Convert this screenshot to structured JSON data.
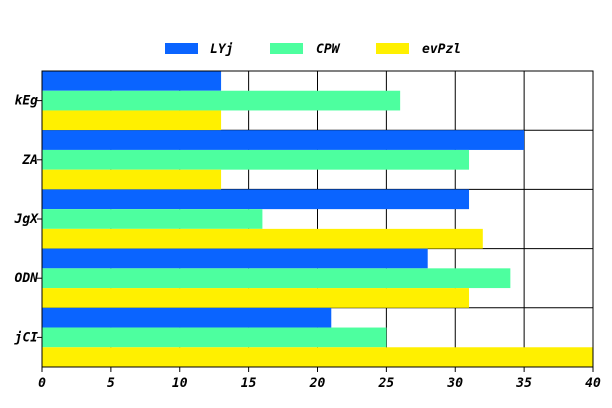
{
  "chart_data": {
    "type": "bar",
    "orientation": "horizontal",
    "categories": [
      "kEg",
      "ZA",
      "JgX",
      "ODN",
      "jCI"
    ],
    "series": [
      {
        "name": "LYj",
        "color": "#0a64ff",
        "values": [
          13,
          35,
          31,
          28,
          21
        ]
      },
      {
        "name": "CPW",
        "color": "#4dff9f",
        "values": [
          26,
          31,
          16,
          34,
          25
        ]
      },
      {
        "name": "evPzl",
        "color": "#fff000",
        "values": [
          13,
          13,
          32,
          31,
          40
        ]
      }
    ],
    "xlim": [
      0,
      40
    ],
    "xticks": [
      0,
      5,
      10,
      15,
      20,
      25,
      30,
      35,
      40
    ],
    "grid": true,
    "legend_position": "top"
  }
}
